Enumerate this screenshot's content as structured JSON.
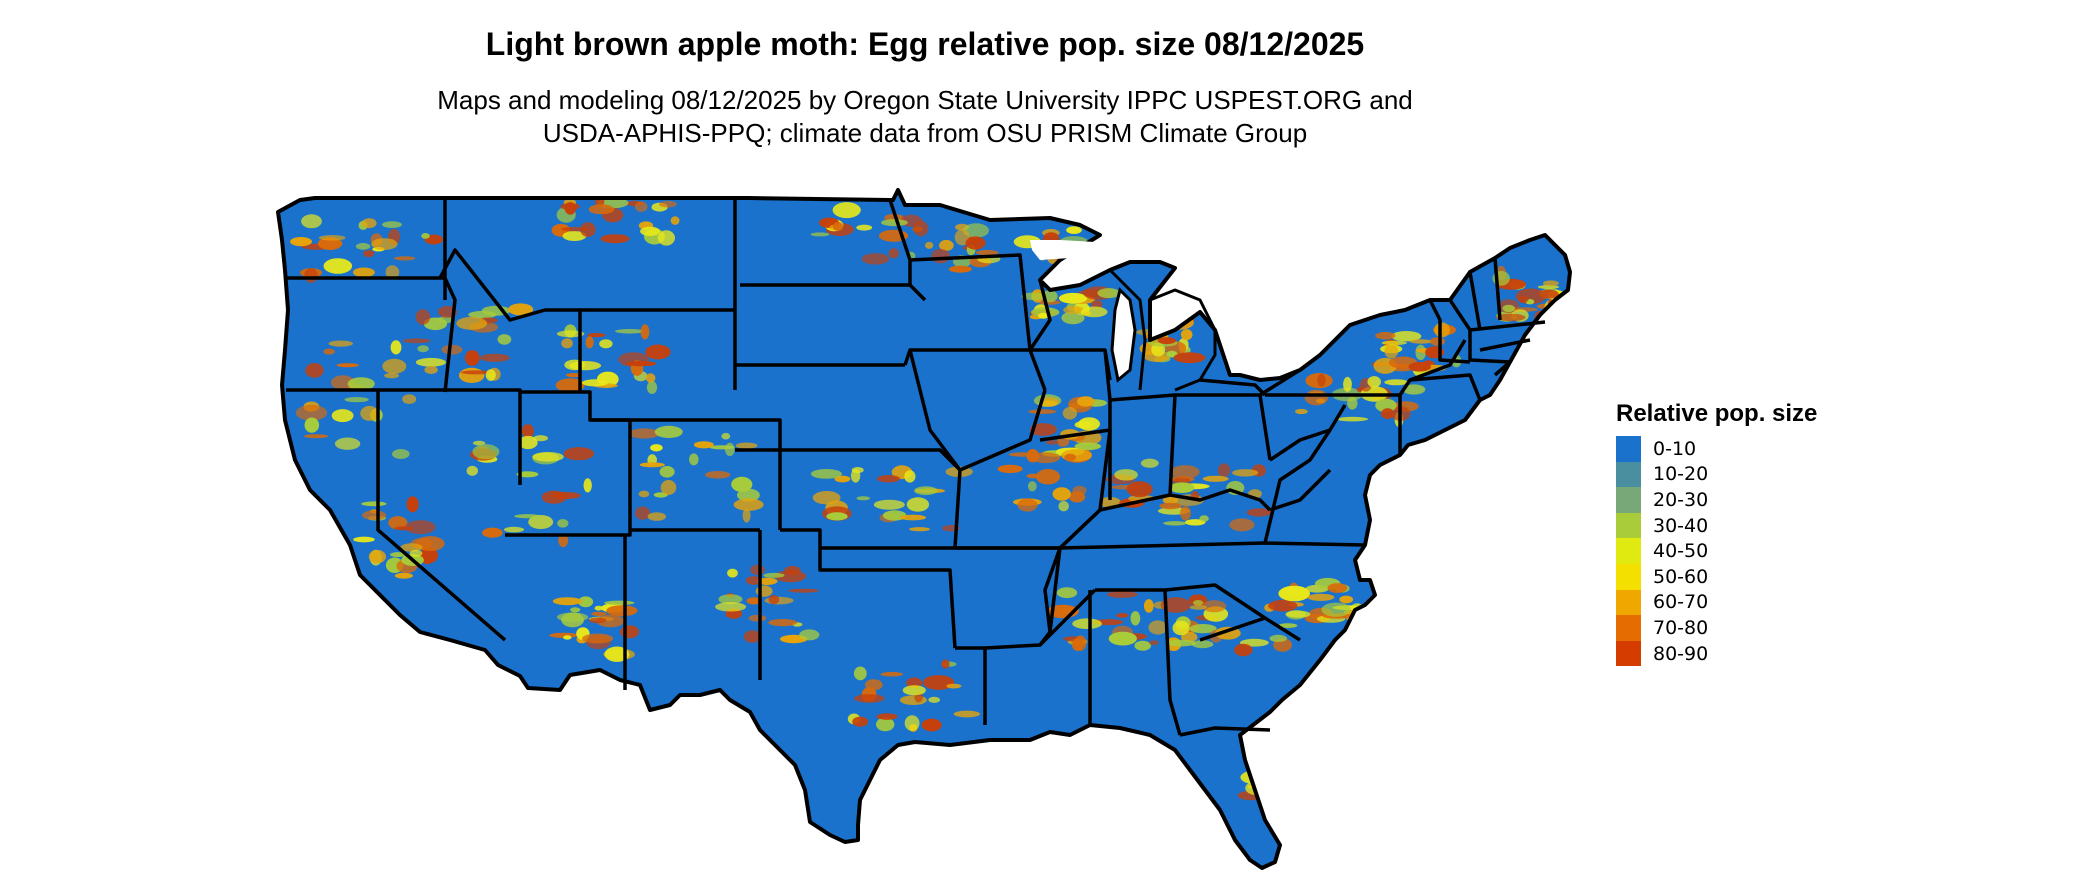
{
  "title": "Light brown apple moth: Egg relative pop. size 08/12/2025",
  "subtitle_lines": [
    "Maps and modeling 08/12/2025 by Oregon State University IPPC USPEST.ORG and",
    "USDA-APHIS-PPQ; climate data from OSU PRISM Climate Group"
  ],
  "map": {
    "region": "contiguous-united-states",
    "base_color": "#1a72cc",
    "border_color": "#000000",
    "hotspot_colors": [
      "#e6a30a",
      "#d96a0a",
      "#c8400a",
      "#a8cc3a",
      "#e8e81a"
    ]
  },
  "legend": {
    "title": "Relative pop. size",
    "items": [
      {
        "label": "0-10",
        "color": "#1a72cc"
      },
      {
        "label": "10-20",
        "color": "#4a8fa0"
      },
      {
        "label": "20-30",
        "color": "#78a878"
      },
      {
        "label": "30-40",
        "color": "#a8cc3a"
      },
      {
        "label": "40-50",
        "color": "#e0ea10"
      },
      {
        "label": "50-60",
        "color": "#f4e000"
      },
      {
        "label": "60-70",
        "color": "#f0a800"
      },
      {
        "label": "70-80",
        "color": "#e46c00"
      },
      {
        "label": "80-90",
        "color": "#d43c00"
      }
    ]
  }
}
